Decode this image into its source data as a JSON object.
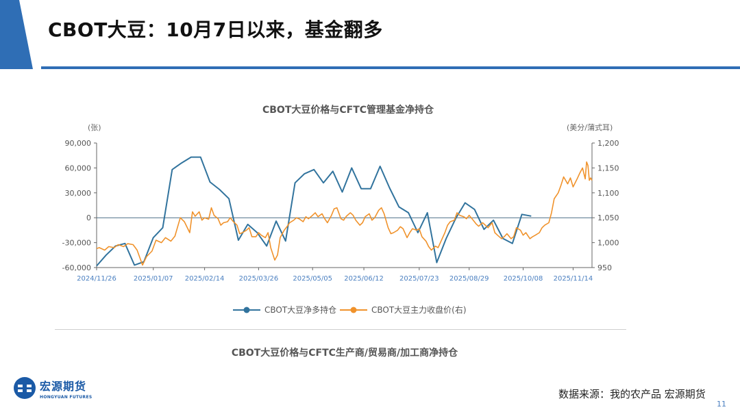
{
  "slide": {
    "title": "CBOT大豆：10月7日以来，基金翻多",
    "page_number": "11",
    "source": "数据来源：我的农产品 宏源期货",
    "accent_color": "#2f6eb5"
  },
  "logo": {
    "cn": "宏源期货",
    "en": "HONGYUAN FUTURES"
  },
  "chart2_title": "CBOT大豆价格与CFTC生产商/贸易商/加工商净持仓",
  "chart_data": {
    "type": "line",
    "title": "CBOT大豆价格与CFTC管理基金净持仓",
    "left_unit": "(张)",
    "right_unit": "(美分/蒲式耳)",
    "ylim_left": [
      -60000,
      90000
    ],
    "ylim_right": [
      950,
      1200
    ],
    "left_ticks": [
      {
        "v": 90000,
        "label": "90,000"
      },
      {
        "v": 60000,
        "label": "60,000"
      },
      {
        "v": 30000,
        "label": "30,000"
      },
      {
        "v": 0,
        "label": "0"
      },
      {
        "v": -30000,
        "label": "-30,000"
      },
      {
        "v": -60000,
        "label": "-60,000"
      }
    ],
    "right_ticks": [
      {
        "v": 1200,
        "label": "1,200"
      },
      {
        "v": 1150,
        "label": "1,150"
      },
      {
        "v": 1100,
        "label": "1,100"
      },
      {
        "v": 1050,
        "label": "1,050"
      },
      {
        "v": 1000,
        "label": "1,000"
      },
      {
        "v": 950,
        "label": "950"
      }
    ],
    "xlim": [
      "2024-11-26",
      "2025-11-28"
    ],
    "x_ticks": [
      "2024/11/26",
      "2025/01/07",
      "2025/02/14",
      "2025/03/26",
      "2025/05/05",
      "2025/06/12",
      "2025/07/23",
      "2025/08/29",
      "2025/10/08",
      "2025/11/14"
    ],
    "zero_line": true,
    "legend_position": "bottom",
    "series": [
      {
        "name": "CBOT大豆净多持仓",
        "axis": "left",
        "color": "#31739d",
        "points": [
          [
            "2024-11-26",
            -58000
          ],
          [
            "2024-12-03",
            -45000
          ],
          [
            "2024-12-10",
            -34000
          ],
          [
            "2024-12-17",
            -31000
          ],
          [
            "2024-12-24",
            -57000
          ],
          [
            "2024-12-31",
            -53000
          ],
          [
            "2025-01-07",
            -24000
          ],
          [
            "2025-01-14",
            -12000
          ],
          [
            "2025-01-21",
            58000
          ],
          [
            "2025-01-28",
            66000
          ],
          [
            "2025-02-04",
            73000
          ],
          [
            "2025-02-11",
            73000
          ],
          [
            "2025-02-18",
            43000
          ],
          [
            "2025-02-25",
            34000
          ],
          [
            "2025-03-04",
            23000
          ],
          [
            "2025-03-11",
            -27000
          ],
          [
            "2025-03-18",
            -8000
          ],
          [
            "2025-03-25",
            -18000
          ],
          [
            "2025-04-01",
            -34000
          ],
          [
            "2025-04-08",
            -4000
          ],
          [
            "2025-04-15",
            -28000
          ],
          [
            "2025-04-22",
            42000
          ],
          [
            "2025-04-29",
            53000
          ],
          [
            "2025-05-06",
            58000
          ],
          [
            "2025-05-13",
            42000
          ],
          [
            "2025-05-20",
            56000
          ],
          [
            "2025-05-27",
            31000
          ],
          [
            "2025-06-03",
            60000
          ],
          [
            "2025-06-10",
            35000
          ],
          [
            "2025-06-17",
            35000
          ],
          [
            "2025-06-24",
            62000
          ],
          [
            "2025-07-01",
            36000
          ],
          [
            "2025-07-08",
            13000
          ],
          [
            "2025-07-15",
            6000
          ],
          [
            "2025-07-22",
            -18000
          ],
          [
            "2025-07-29",
            6000
          ],
          [
            "2025-08-05",
            -54000
          ],
          [
            "2025-08-12",
            -25000
          ],
          [
            "2025-08-19",
            -1000
          ],
          [
            "2025-08-26",
            18000
          ],
          [
            "2025-09-02",
            10000
          ],
          [
            "2025-09-09",
            -14000
          ],
          [
            "2025-09-16",
            -3000
          ],
          [
            "2025-09-23",
            -25000
          ],
          [
            "2025-09-30",
            -31000
          ],
          [
            "2025-10-07",
            4000
          ],
          [
            "2025-10-14",
            2000
          ]
        ]
      },
      {
        "name": "CBOT大豆主力收盘价(右)",
        "axis": "right",
        "color": "#f0922b",
        "points": [
          [
            "2024-11-26",
            988
          ],
          [
            "2024-11-28",
            990
          ],
          [
            "2024-12-02",
            985
          ],
          [
            "2024-12-05",
            992
          ],
          [
            "2024-12-09",
            990
          ],
          [
            "2024-12-12",
            996
          ],
          [
            "2024-12-16",
            992
          ],
          [
            "2024-12-19",
            998
          ],
          [
            "2024-12-23",
            996
          ],
          [
            "2024-12-26",
            985
          ],
          [
            "2024-12-30",
            955
          ],
          [
            "2025-01-02",
            972
          ],
          [
            "2025-01-06",
            983
          ],
          [
            "2025-01-09",
            1005
          ],
          [
            "2025-01-13",
            1000
          ],
          [
            "2025-01-16",
            1010
          ],
          [
            "2025-01-20",
            1003
          ],
          [
            "2025-01-23",
            1013
          ],
          [
            "2025-01-27",
            1050
          ],
          [
            "2025-01-30",
            1042
          ],
          [
            "2025-02-03",
            1020
          ],
          [
            "2025-02-05",
            1062
          ],
          [
            "2025-02-07",
            1053
          ],
          [
            "2025-02-10",
            1062
          ],
          [
            "2025-02-12",
            1045
          ],
          [
            "2025-02-14",
            1050
          ],
          [
            "2025-02-17",
            1047
          ],
          [
            "2025-02-19",
            1070
          ],
          [
            "2025-02-21",
            1055
          ],
          [
            "2025-02-24",
            1048
          ],
          [
            "2025-02-26",
            1035
          ],
          [
            "2025-02-28",
            1040
          ],
          [
            "2025-03-03",
            1042
          ],
          [
            "2025-03-05",
            1050
          ],
          [
            "2025-03-07",
            1043
          ],
          [
            "2025-03-10",
            1035
          ],
          [
            "2025-03-12",
            1018
          ],
          [
            "2025-03-14",
            1020
          ],
          [
            "2025-03-17",
            1025
          ],
          [
            "2025-03-19",
            1030
          ],
          [
            "2025-03-21",
            1012
          ],
          [
            "2025-03-24",
            1012
          ],
          [
            "2025-03-26",
            1020
          ],
          [
            "2025-03-28",
            1015
          ],
          [
            "2025-03-31",
            1010
          ],
          [
            "2025-04-02",
            1020
          ],
          [
            "2025-04-04",
            990
          ],
          [
            "2025-04-07",
            965
          ],
          [
            "2025-04-09",
            975
          ],
          [
            "2025-04-11",
            1010
          ],
          [
            "2025-04-14",
            1025
          ],
          [
            "2025-04-16",
            1032
          ],
          [
            "2025-04-18",
            1040
          ],
          [
            "2025-04-21",
            1045
          ],
          [
            "2025-04-23",
            1050
          ],
          [
            "2025-04-25",
            1048
          ],
          [
            "2025-04-28",
            1042
          ],
          [
            "2025-04-30",
            1052
          ],
          [
            "2025-05-02",
            1048
          ],
          [
            "2025-05-05",
            1055
          ],
          [
            "2025-05-07",
            1060
          ],
          [
            "2025-05-09",
            1052
          ],
          [
            "2025-05-12",
            1058
          ],
          [
            "2025-05-14",
            1048
          ],
          [
            "2025-05-16",
            1040
          ],
          [
            "2025-05-19",
            1055
          ],
          [
            "2025-05-21",
            1068
          ],
          [
            "2025-05-23",
            1070
          ],
          [
            "2025-05-26",
            1048
          ],
          [
            "2025-05-28",
            1045
          ],
          [
            "2025-05-30",
            1053
          ],
          [
            "2025-06-02",
            1060
          ],
          [
            "2025-06-04",
            1055
          ],
          [
            "2025-06-06",
            1045
          ],
          [
            "2025-06-09",
            1035
          ],
          [
            "2025-06-11",
            1040
          ],
          [
            "2025-06-13",
            1052
          ],
          [
            "2025-06-16",
            1058
          ],
          [
            "2025-06-18",
            1045
          ],
          [
            "2025-06-20",
            1050
          ],
          [
            "2025-06-23",
            1065
          ],
          [
            "2025-06-25",
            1070
          ],
          [
            "2025-06-27",
            1058
          ],
          [
            "2025-06-30",
            1030
          ],
          [
            "2025-07-02",
            1018
          ],
          [
            "2025-07-04",
            1020
          ],
          [
            "2025-07-07",
            1025
          ],
          [
            "2025-07-09",
            1032
          ],
          [
            "2025-07-11",
            1028
          ],
          [
            "2025-07-14",
            1010
          ],
          [
            "2025-07-16",
            1020
          ],
          [
            "2025-07-18",
            1028
          ],
          [
            "2025-07-21",
            1025
          ],
          [
            "2025-07-23",
            1028
          ],
          [
            "2025-07-25",
            1012
          ],
          [
            "2025-07-28",
            1003
          ],
          [
            "2025-07-30",
            992
          ],
          [
            "2025-08-01",
            985
          ],
          [
            "2025-08-04",
            993
          ],
          [
            "2025-08-06",
            990
          ],
          [
            "2025-08-08",
            1002
          ],
          [
            "2025-08-11",
            1020
          ],
          [
            "2025-08-13",
            1035
          ],
          [
            "2025-08-15",
            1042
          ],
          [
            "2025-08-18",
            1045
          ],
          [
            "2025-08-20",
            1060
          ],
          [
            "2025-08-22",
            1055
          ],
          [
            "2025-08-25",
            1052
          ],
          [
            "2025-08-27",
            1048
          ],
          [
            "2025-08-29",
            1055
          ],
          [
            "2025-09-01",
            1045
          ],
          [
            "2025-09-03",
            1038
          ],
          [
            "2025-09-05",
            1033
          ],
          [
            "2025-09-08",
            1040
          ],
          [
            "2025-09-10",
            1035
          ],
          [
            "2025-09-12",
            1030
          ],
          [
            "2025-09-15",
            1040
          ],
          [
            "2025-09-17",
            1020
          ],
          [
            "2025-09-19",
            1015
          ],
          [
            "2025-09-22",
            1008
          ],
          [
            "2025-09-24",
            1012
          ],
          [
            "2025-09-26",
            1018
          ],
          [
            "2025-09-29",
            1008
          ],
          [
            "2025-10-01",
            1012
          ],
          [
            "2025-10-03",
            1030
          ],
          [
            "2025-10-06",
            1025
          ],
          [
            "2025-10-08",
            1015
          ],
          [
            "2025-10-10",
            1020
          ],
          [
            "2025-10-13",
            1008
          ],
          [
            "2025-10-15",
            1012
          ],
          [
            "2025-10-17",
            1015
          ],
          [
            "2025-10-20",
            1020
          ],
          [
            "2025-10-22",
            1030
          ],
          [
            "2025-10-24",
            1035
          ],
          [
            "2025-10-27",
            1040
          ],
          [
            "2025-10-29",
            1060
          ],
          [
            "2025-10-31",
            1088
          ],
          [
            "2025-11-03",
            1100
          ],
          [
            "2025-11-05",
            1115
          ],
          [
            "2025-11-07",
            1132
          ],
          [
            "2025-11-10",
            1118
          ],
          [
            "2025-11-12",
            1130
          ],
          [
            "2025-11-14",
            1112
          ],
          [
            "2025-11-17",
            1128
          ],
          [
            "2025-11-19",
            1140
          ],
          [
            "2025-11-21",
            1150
          ],
          [
            "2025-11-23",
            1128
          ],
          [
            "2025-11-24",
            1162
          ],
          [
            "2025-11-25",
            1155
          ],
          [
            "2025-11-26",
            1125
          ],
          [
            "2025-11-27",
            1130
          ],
          [
            "2025-11-28",
            1125
          ]
        ]
      }
    ]
  }
}
